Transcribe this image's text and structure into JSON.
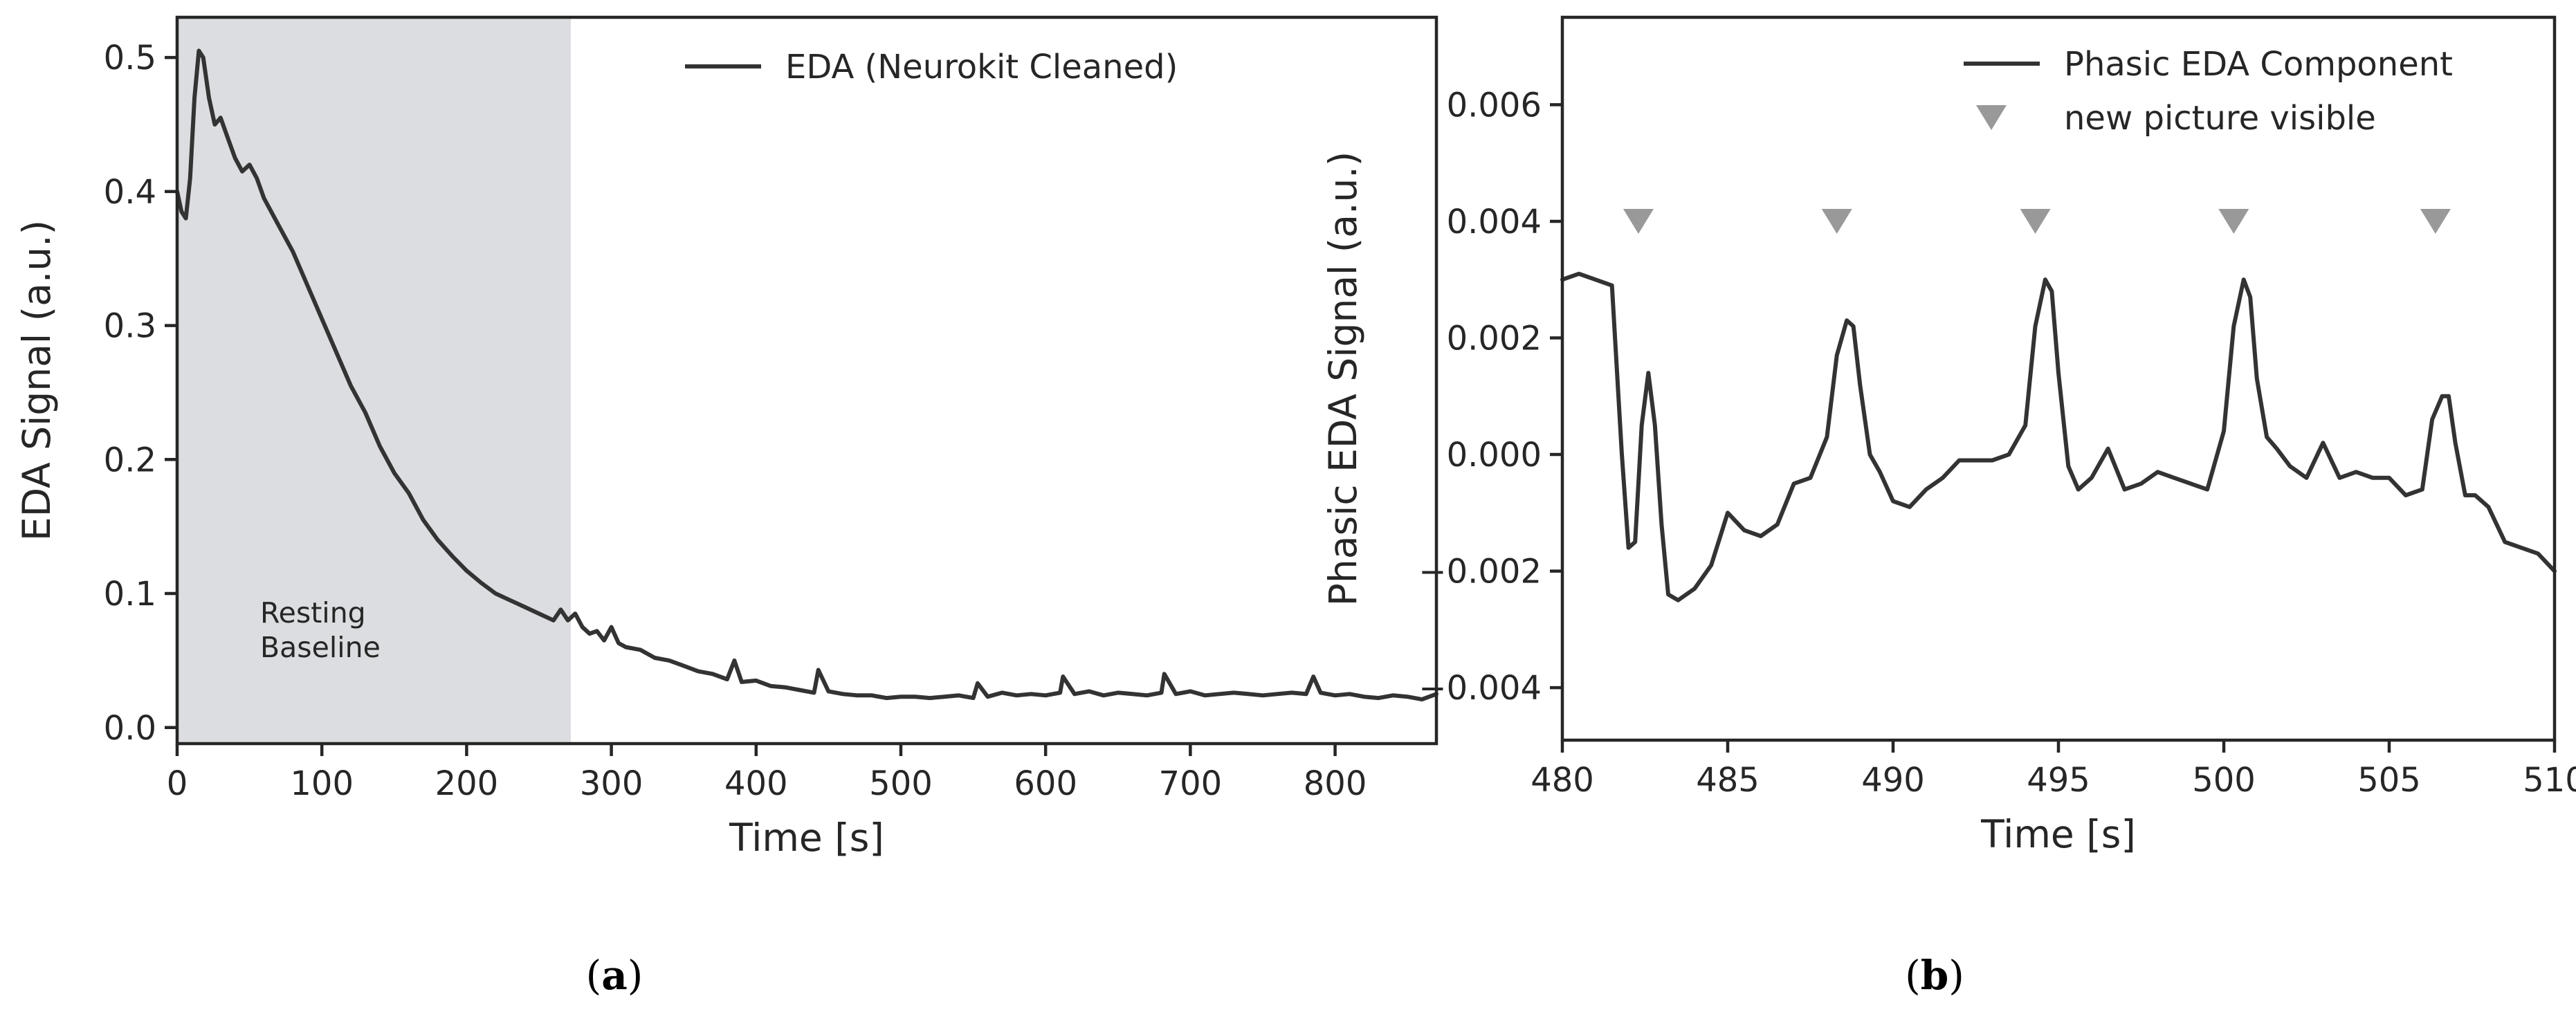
{
  "chart_data": [
    {
      "panel": "(a)",
      "type": "line",
      "xlabel": "Time [s]",
      "ylabel": "EDA Signal (a.u.)",
      "xlim": [
        0,
        870
      ],
      "ylim": [
        -0.012,
        0.53
      ],
      "xticks": [
        0,
        100,
        200,
        300,
        400,
        500,
        600,
        700,
        800
      ],
      "yticks": [
        0.0,
        0.1,
        0.2,
        0.3,
        0.4,
        0.5
      ],
      "ytick_labels": [
        "0.0",
        "0.1",
        "0.2",
        "0.3",
        "0.4",
        "0.5"
      ],
      "legend_position": "top-right",
      "line_color": "#333333",
      "shaded_region": {
        "x": [
          0,
          272
        ],
        "color": "#dcdde0",
        "label_lines": [
          "Resting",
          "Baseline"
        ]
      },
      "series": [
        {
          "name": "EDA (Neurokit Cleaned)",
          "x": [
            0,
            3,
            6,
            9,
            12,
            15,
            18,
            22,
            26,
            30,
            35,
            40,
            45,
            50,
            55,
            60,
            70,
            80,
            90,
            100,
            110,
            120,
            130,
            140,
            150,
            160,
            170,
            180,
            190,
            200,
            210,
            220,
            230,
            240,
            250,
            260,
            265,
            270,
            275,
            280,
            285,
            290,
            295,
            300,
            305,
            310,
            320,
            330,
            340,
            350,
            360,
            370,
            380,
            385,
            390,
            400,
            410,
            420,
            430,
            440,
            443,
            450,
            460,
            470,
            480,
            490,
            500,
            510,
            520,
            530,
            540,
            550,
            553,
            560,
            570,
            580,
            590,
            600,
            610,
            612,
            620,
            630,
            640,
            650,
            660,
            670,
            680,
            682,
            690,
            700,
            710,
            720,
            730,
            740,
            750,
            760,
            770,
            780,
            785,
            790,
            800,
            810,
            820,
            830,
            840,
            850,
            860,
            870
          ],
          "y": [
            0.4,
            0.385,
            0.38,
            0.41,
            0.47,
            0.505,
            0.5,
            0.47,
            0.45,
            0.455,
            0.44,
            0.425,
            0.415,
            0.42,
            0.41,
            0.395,
            0.375,
            0.355,
            0.33,
            0.305,
            0.28,
            0.255,
            0.235,
            0.21,
            0.19,
            0.175,
            0.155,
            0.14,
            0.128,
            0.117,
            0.108,
            0.1,
            0.095,
            0.09,
            0.085,
            0.08,
            0.088,
            0.08,
            0.085,
            0.075,
            0.07,
            0.072,
            0.065,
            0.075,
            0.063,
            0.06,
            0.058,
            0.052,
            0.05,
            0.046,
            0.042,
            0.04,
            0.036,
            0.05,
            0.034,
            0.035,
            0.031,
            0.03,
            0.028,
            0.026,
            0.043,
            0.027,
            0.025,
            0.024,
            0.024,
            0.022,
            0.023,
            0.023,
            0.022,
            0.023,
            0.024,
            0.022,
            0.033,
            0.023,
            0.026,
            0.024,
            0.025,
            0.024,
            0.026,
            0.038,
            0.025,
            0.027,
            0.024,
            0.026,
            0.025,
            0.024,
            0.026,
            0.04,
            0.025,
            0.027,
            0.024,
            0.025,
            0.026,
            0.025,
            0.024,
            0.025,
            0.026,
            0.025,
            0.038,
            0.026,
            0.024,
            0.025,
            0.023,
            0.022,
            0.024,
            0.023,
            0.021,
            0.025
          ]
        }
      ]
    },
    {
      "panel": "(b)",
      "type": "line",
      "xlabel": "Time [s]",
      "ylabel": "Phasic EDA Signal (a.u.)",
      "xlim": [
        480,
        510
      ],
      "ylim": [
        -0.0049,
        0.0075
      ],
      "xticks": [
        480,
        485,
        490,
        495,
        500,
        505,
        510
      ],
      "yticks": [
        -0.004,
        -0.002,
        0.0,
        0.002,
        0.004,
        0.006
      ],
      "ytick_labels": [
        "−0.004",
        "−0.002",
        "0.000",
        "0.002",
        "0.004",
        "0.006"
      ],
      "legend_position": "top-right",
      "line_color": "#333333",
      "marker_color": "#999999",
      "series": [
        {
          "name": "Phasic EDA Component",
          "x": [
            480,
            480.5,
            481,
            481.5,
            481.8,
            482.0,
            482.2,
            482.4,
            482.6,
            482.8,
            483.0,
            483.2,
            483.5,
            484.0,
            484.5,
            485.0,
            485.5,
            486.0,
            486.5,
            487.0,
            487.5,
            488.0,
            488.3,
            488.6,
            488.8,
            489.0,
            489.3,
            489.6,
            490.0,
            490.5,
            491.0,
            491.5,
            492.0,
            493.0,
            493.5,
            494.0,
            494.3,
            494.6,
            494.8,
            495.0,
            495.3,
            495.6,
            496.0,
            496.5,
            497.0,
            497.5,
            498.0,
            498.5,
            499.0,
            499.5,
            500.0,
            500.3,
            500.6,
            500.8,
            501.0,
            501.3,
            501.6,
            502.0,
            502.5,
            503.0,
            503.5,
            504.0,
            504.5,
            505.0,
            505.5,
            506.0,
            506.3,
            506.6,
            506.8,
            507.0,
            507.3,
            507.6,
            508.0,
            508.5,
            509.0,
            509.5,
            510.0
          ],
          "y": [
            0.003,
            0.0031,
            0.003,
            0.0029,
            0.0,
            -0.0016,
            -0.0015,
            0.0005,
            0.0014,
            0.0005,
            -0.0012,
            -0.0024,
            -0.0025,
            -0.0023,
            -0.0019,
            -0.001,
            -0.0013,
            -0.0014,
            -0.0012,
            -0.0005,
            -0.0004,
            0.0003,
            0.0017,
            0.0023,
            0.0022,
            0.0012,
            0.0,
            -0.0003,
            -0.0008,
            -0.0009,
            -0.0006,
            -0.0004,
            -0.0001,
            -0.0001,
            0.0,
            0.0005,
            0.0022,
            0.003,
            0.0028,
            0.0014,
            -0.0002,
            -0.0006,
            -0.0004,
            0.0001,
            -0.0006,
            -0.0005,
            -0.0003,
            -0.0004,
            -0.0005,
            -0.0006,
            0.0004,
            0.0022,
            0.003,
            0.0027,
            0.0013,
            0.0003,
            0.0001,
            -0.0002,
            -0.0004,
            0.0002,
            -0.0004,
            -0.0003,
            -0.0004,
            -0.0004,
            -0.0007,
            -0.0006,
            0.0006,
            0.001,
            0.001,
            0.0002,
            -0.0007,
            -0.0007,
            -0.0009,
            -0.0015,
            -0.0016,
            -0.0017,
            -0.002
          ]
        },
        {
          "name": "new picture visible",
          "type": "marker",
          "x": [
            482.3,
            488.3,
            494.3,
            500.3,
            506.4
          ],
          "y": [
            0.004,
            0.004,
            0.004,
            0.004,
            0.004
          ]
        }
      ]
    }
  ],
  "captions": [
    "(a)",
    "(b)"
  ]
}
